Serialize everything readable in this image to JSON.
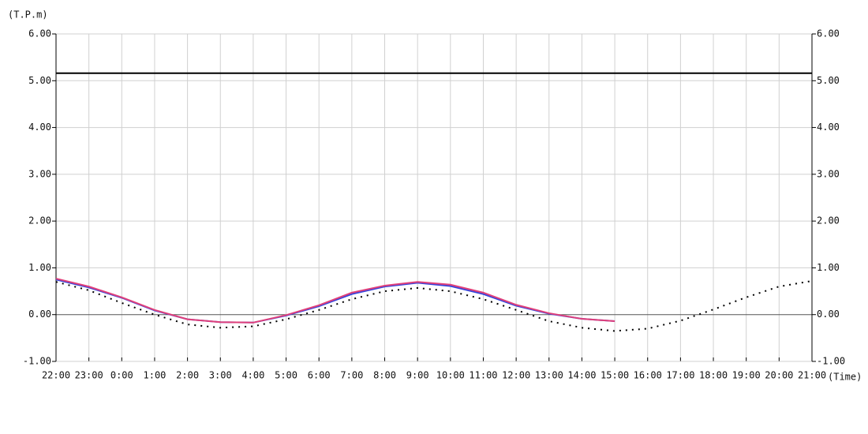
{
  "chart_data": {
    "type": "line",
    "y_label": "(T.P.m)",
    "x_label": "(Time)",
    "categories": [
      "22:00",
      "23:00",
      "0:00",
      "1:00",
      "2:00",
      "3:00",
      "4:00",
      "5:00",
      "6:00",
      "7:00",
      "8:00",
      "9:00",
      "10:00",
      "11:00",
      "12:00",
      "13:00",
      "14:00",
      "15:00",
      "16:00",
      "17:00",
      "18:00",
      "19:00",
      "20:00",
      "21:00"
    ],
    "series": [
      {
        "color": "#000000",
        "style": "solid",
        "values": [
          5.16,
          5.16,
          5.16,
          5.16,
          5.16,
          5.16,
          5.16,
          5.16,
          5.16,
          5.16,
          5.16,
          5.16,
          5.16,
          5.16,
          5.16,
          5.16,
          5.16,
          5.16,
          5.16,
          5.16,
          5.16,
          5.16,
          5.16,
          5.16
        ]
      },
      {
        "color": "#000000",
        "style": "dotted",
        "values": [
          0.7,
          0.52,
          0.25,
          0.0,
          -0.21,
          -0.28,
          -0.25,
          -0.1,
          0.1,
          0.33,
          0.5,
          0.57,
          0.5,
          0.33,
          0.1,
          -0.14,
          -0.28,
          -0.35,
          -0.3,
          -0.13,
          0.11,
          0.37,
          0.6,
          0.72
        ]
      },
      {
        "color": "#3344dd",
        "style": "solid",
        "values": [
          0.75,
          0.58,
          0.36,
          0.09,
          -0.1,
          -0.16,
          -0.17,
          -0.02,
          0.18,
          0.44,
          0.6,
          0.68,
          0.61,
          0.44,
          0.19,
          0.02,
          -0.09,
          -0.14,
          null,
          null,
          null,
          null,
          null,
          null
        ]
      },
      {
        "color": "#e0407a",
        "style": "solid",
        "values": [
          0.77,
          0.6,
          0.37,
          0.1,
          -0.1,
          -0.16,
          -0.17,
          -0.01,
          0.2,
          0.47,
          0.62,
          0.7,
          0.64,
          0.47,
          0.21,
          0.03,
          -0.09,
          -0.14,
          null,
          null,
          null,
          null,
          null,
          null
        ]
      }
    ],
    "ylim": [
      -1,
      6
    ],
    "yticks": [
      {
        "value": -1,
        "label": "-1.00"
      },
      {
        "value": 0,
        "label": "0.00"
      },
      {
        "value": 1,
        "label": "1.00"
      },
      {
        "value": 2,
        "label": "2.00"
      },
      {
        "value": 3,
        "label": "3.00"
      },
      {
        "value": 4,
        "label": "4.00"
      },
      {
        "value": 5,
        "label": "5.00"
      },
      {
        "value": 6,
        "label": "6.00"
      }
    ],
    "grid": true
  }
}
